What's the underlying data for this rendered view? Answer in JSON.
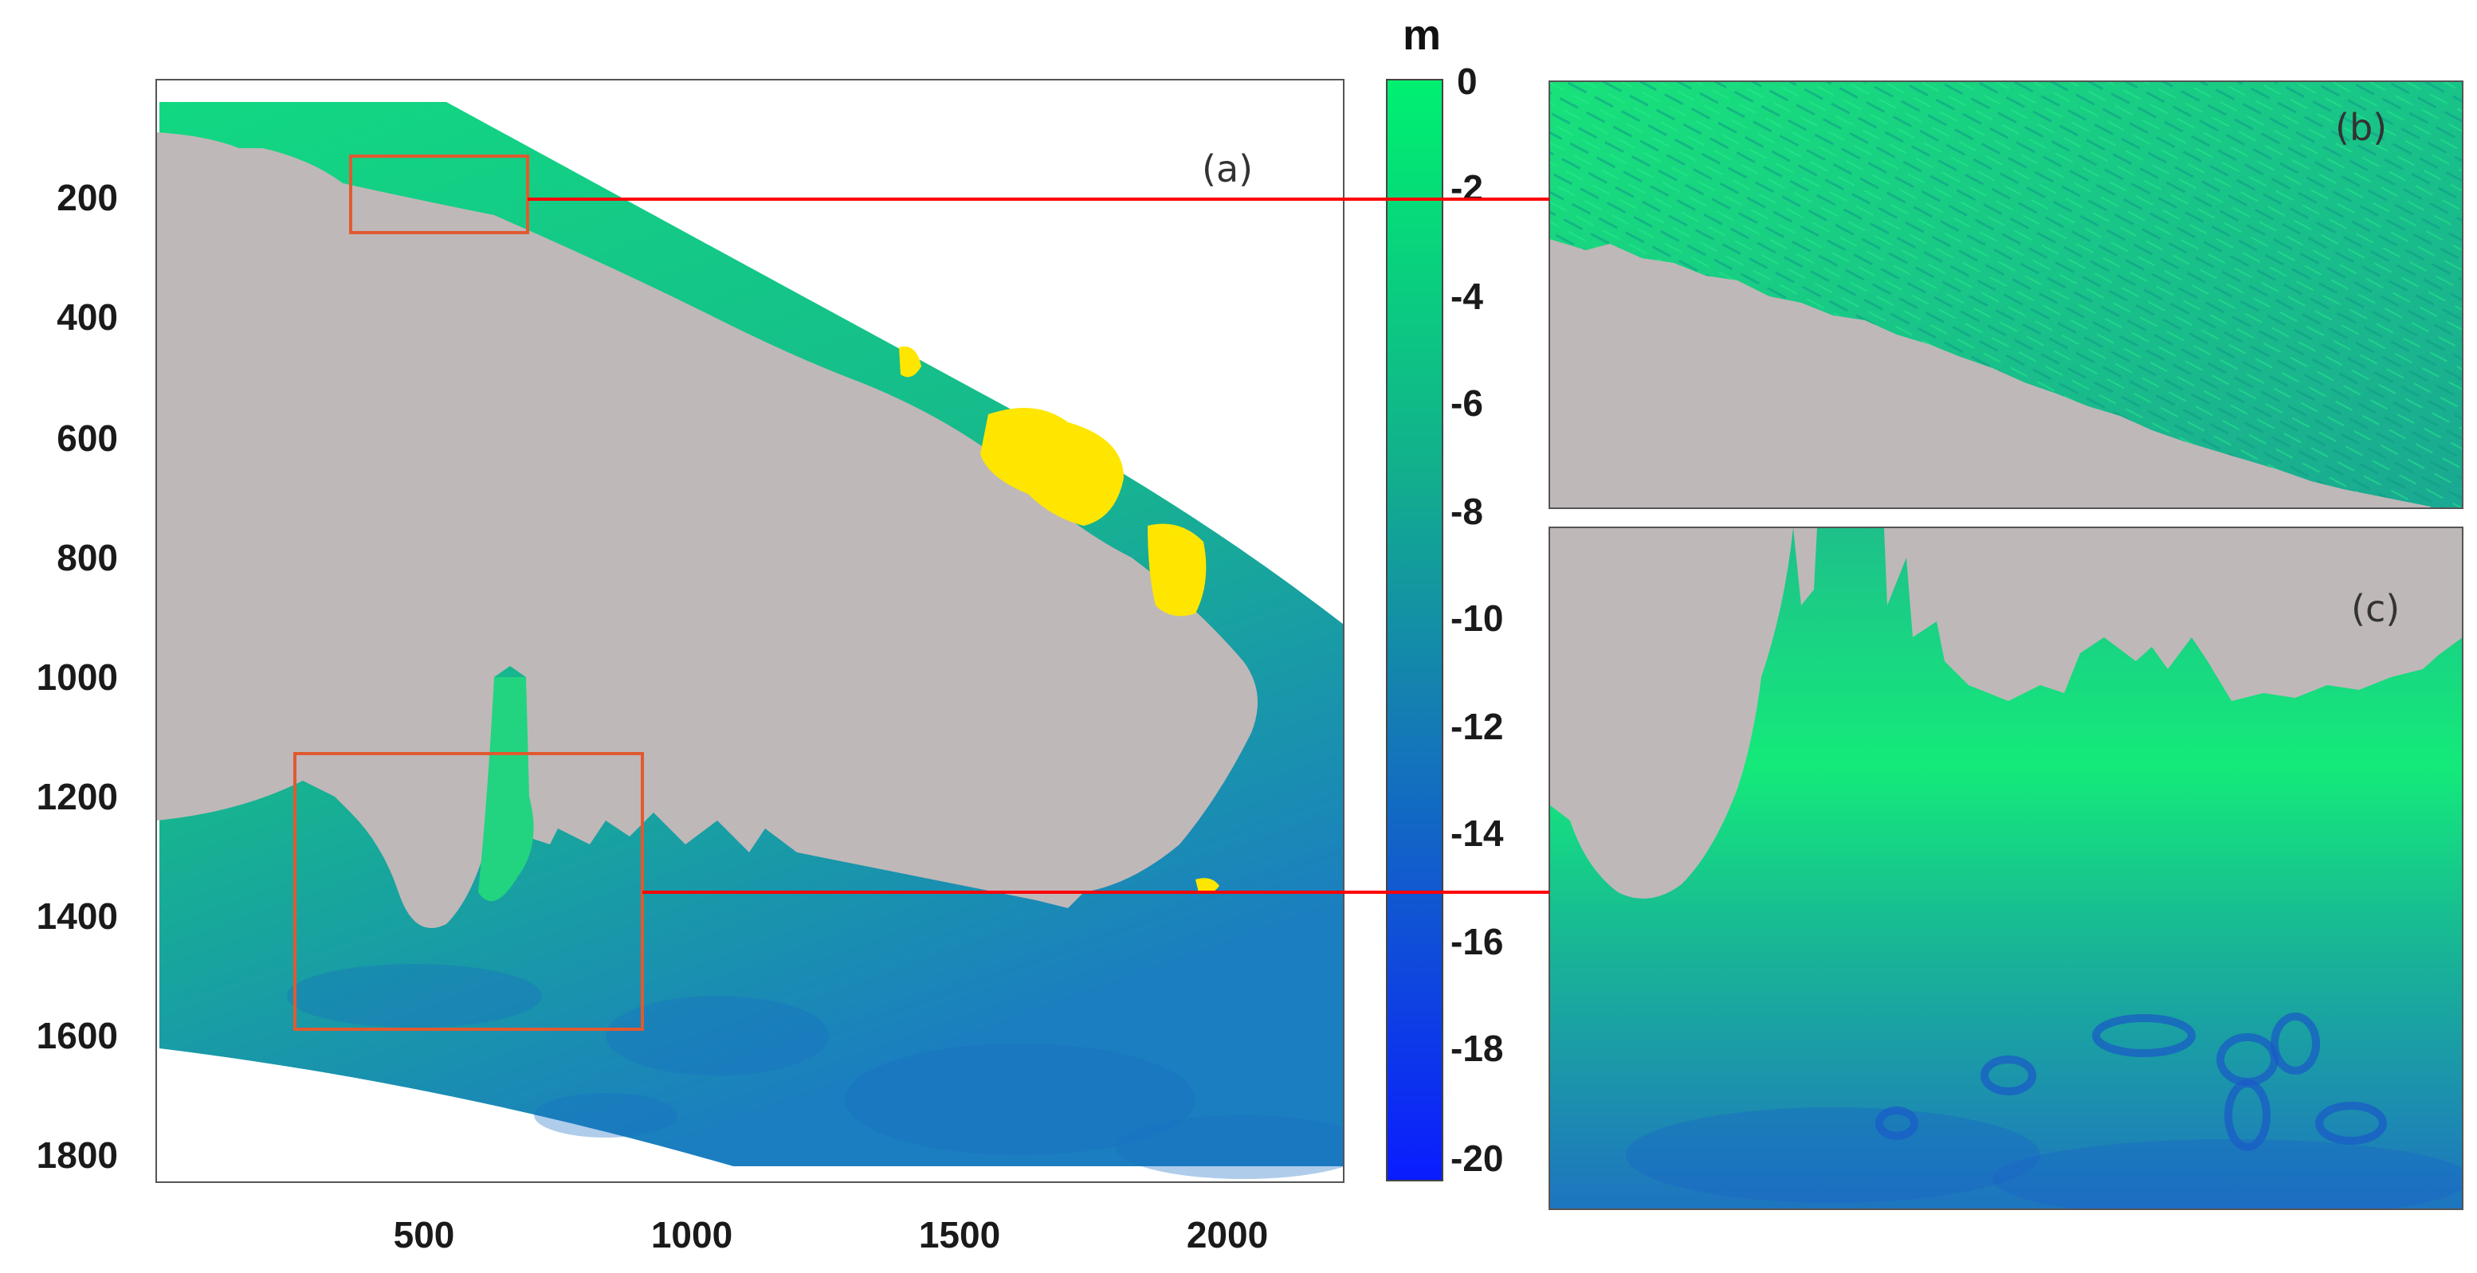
{
  "figure": {
    "panels": {
      "a": "(a)",
      "b": "(b)",
      "c": "(c)"
    },
    "colorbar": {
      "unit": "m",
      "ticks": [
        "0",
        "-2",
        "-4",
        "-6",
        "-8",
        "-10",
        "-12",
        "-14",
        "-16",
        "-18",
        "-20"
      ],
      "range": [
        -20.5,
        0
      ],
      "colors": {
        "shallow": "#00f070",
        "mid": "#109a9c",
        "deep": "#0a1cff"
      }
    },
    "main_map": {
      "x_ticks": [
        "500",
        "1000",
        "1500",
        "2000"
      ],
      "y_ticks": [
        "200",
        "400",
        "600",
        "800",
        "1000",
        "1200",
        "1400",
        "1600",
        "1800"
      ],
      "x_range": [
        1,
        2220
      ],
      "y_range": [
        1,
        1860
      ]
    },
    "colors": {
      "land": "#bfb8b8",
      "highlight": "#ffe600",
      "box": "#e05a30",
      "leader": "#ff0000"
    }
  }
}
